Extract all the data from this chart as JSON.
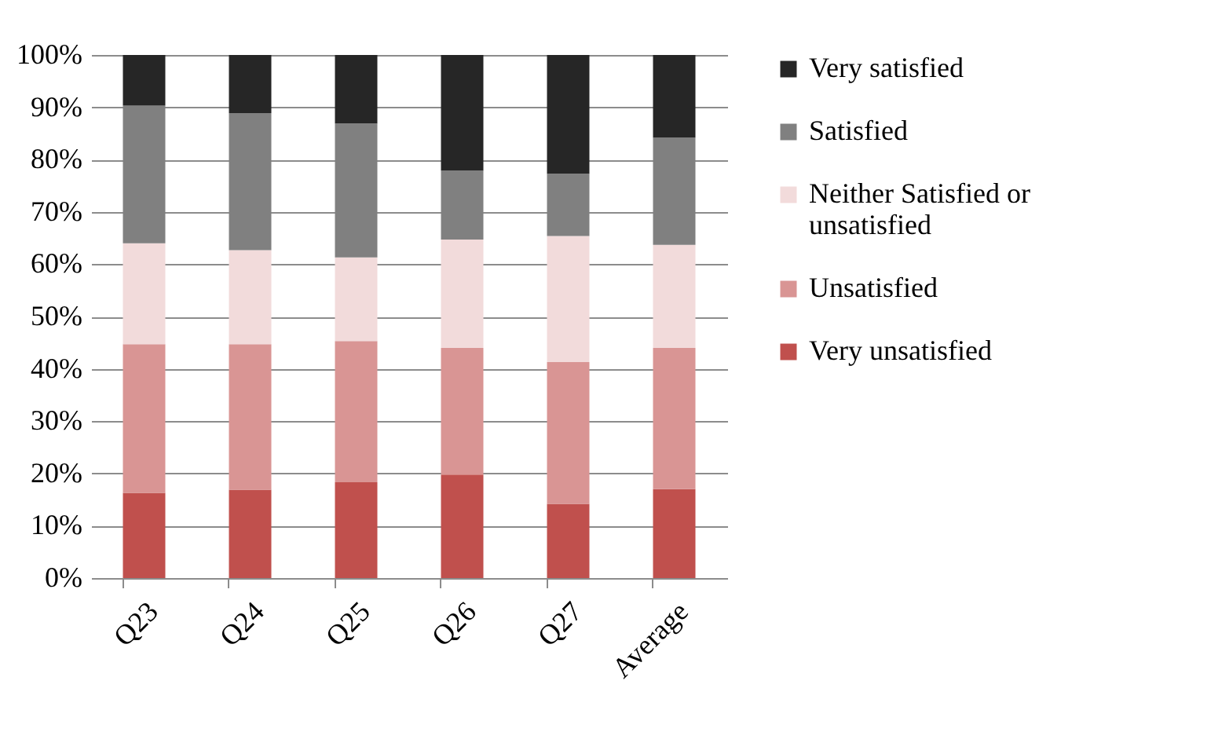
{
  "chart_data": {
    "type": "bar",
    "stacked": true,
    "categories": [
      "Q23",
      "Q24",
      "Q25",
      "Q26",
      "Q27",
      "Average"
    ],
    "series": [
      {
        "name": "Very unsatisfied",
        "color": "#c0504d",
        "values": [
          16.3,
          16.9,
          18.3,
          19.8,
          14.2,
          17.0
        ]
      },
      {
        "name": "Unsatisfied",
        "color": "#d99594",
        "values": [
          28.4,
          27.8,
          27.0,
          24.2,
          27.1,
          27.0
        ]
      },
      {
        "name": "Neither Satisfied or unsatisfied",
        "color": "#f2dbdb",
        "values": [
          19.3,
          18.0,
          16.0,
          20.7,
          24.1,
          19.7
        ]
      },
      {
        "name": "Satisfied",
        "color": "#808080",
        "values": [
          26.3,
          26.2,
          25.6,
          13.2,
          11.9,
          20.5
        ]
      },
      {
        "name": "Very satisfied",
        "color": "#262626",
        "values": [
          9.7,
          11.1,
          13.1,
          22.1,
          22.7,
          15.8
        ]
      }
    ],
    "ylim": [
      0,
      100
    ],
    "yticks": [
      {
        "value": 0,
        "label": "0%"
      },
      {
        "value": 10,
        "label": "10%"
      },
      {
        "value": 20,
        "label": "20%"
      },
      {
        "value": 30,
        "label": "30%"
      },
      {
        "value": 40,
        "label": "40%"
      },
      {
        "value": 50,
        "label": "50%"
      },
      {
        "value": 60,
        "label": "60%"
      },
      {
        "value": 70,
        "label": "70%"
      },
      {
        "value": 80,
        "label": "80%"
      },
      {
        "value": 90,
        "label": "90%"
      },
      {
        "value": 100,
        "label": "100%"
      }
    ],
    "grid": "y",
    "legend": "right"
  }
}
